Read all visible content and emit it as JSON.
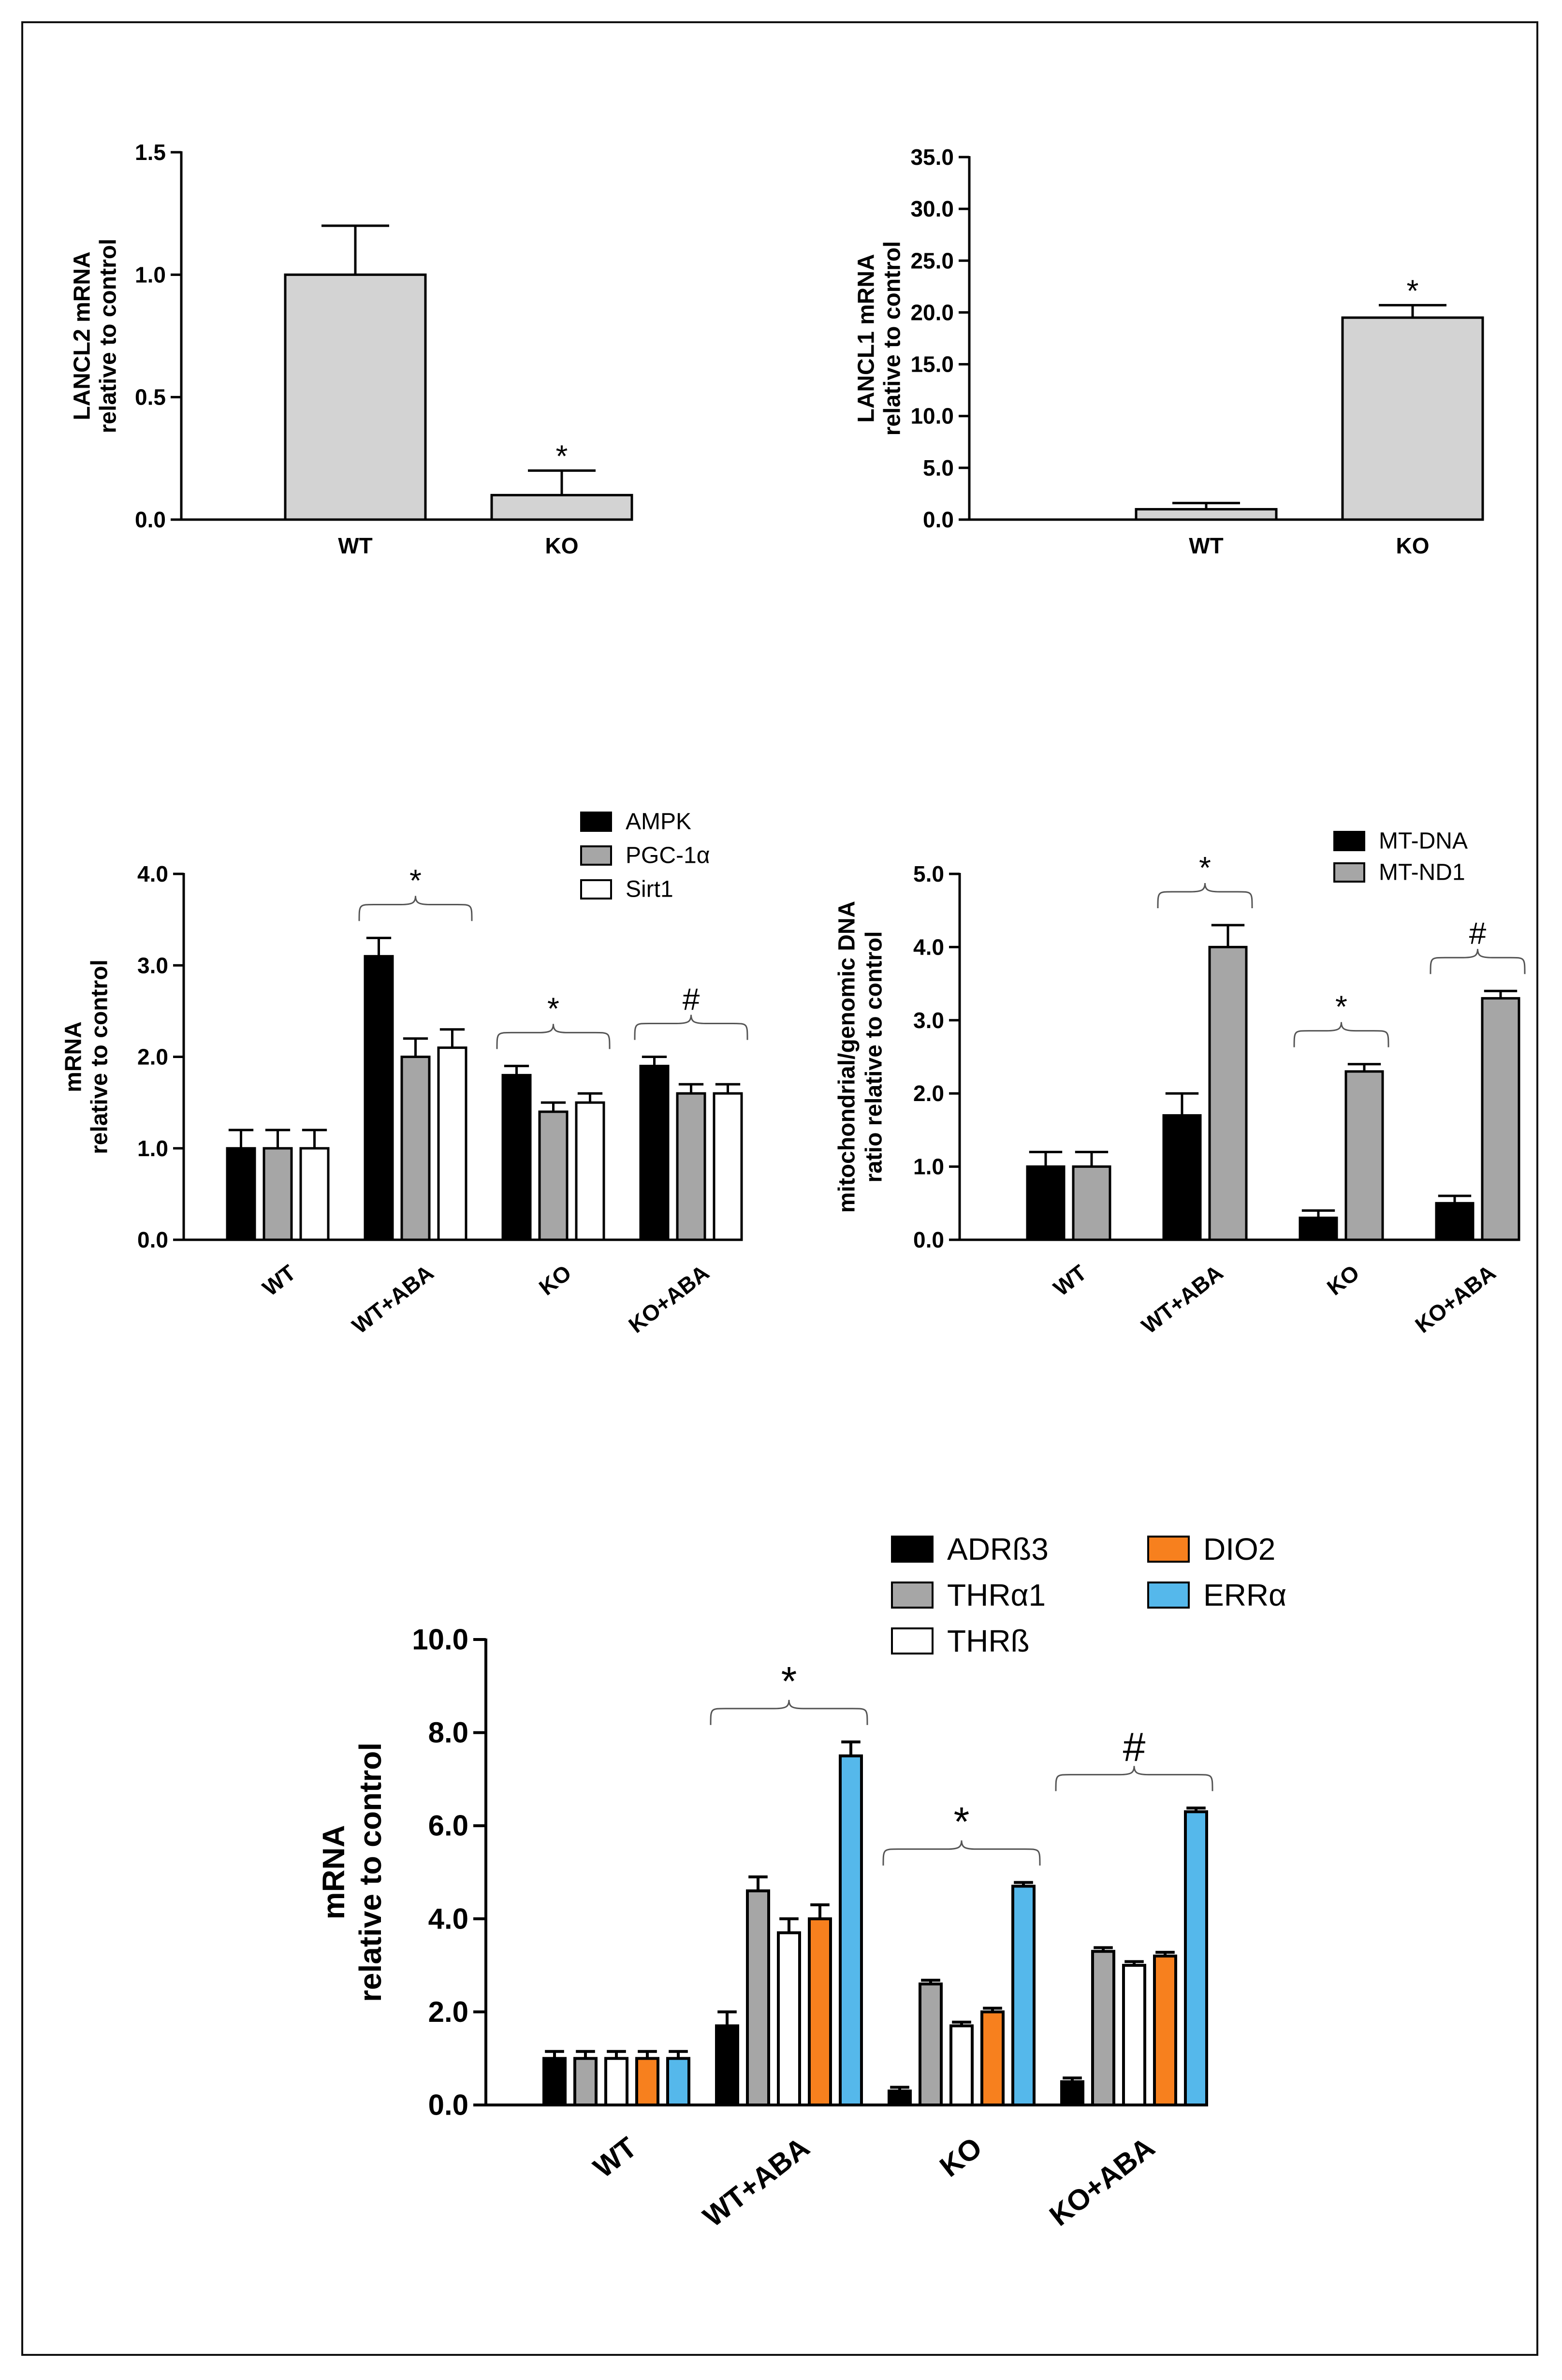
{
  "chart_data": [
    {
      "id": "lancl2",
      "type": "bar",
      "ylabel": [
        "LANCL2 mRNA",
        "relative to control"
      ],
      "categories": [
        "WT",
        "KO"
      ],
      "series": [
        {
          "name": "LANCL2 mRNA",
          "values": [
            1.0,
            0.1
          ],
          "errors": [
            0.2,
            0.1
          ],
          "color": "#d3d3d3"
        }
      ],
      "ylim": [
        0,
        1.5
      ],
      "yticks": [
        0,
        0.5,
        1.0,
        1.5
      ],
      "ytick_labels": [
        "0.0",
        "0.5",
        "1.0",
        "1.5"
      ],
      "annotations": [
        {
          "category": 1,
          "text": "*"
        }
      ]
    },
    {
      "id": "lancl1",
      "type": "bar",
      "ylabel": [
        "LANCL1 mRNA",
        "relative to control"
      ],
      "categories": [
        "WT",
        "KO"
      ],
      "series": [
        {
          "name": "LANCL1 mRNA",
          "values": [
            1.0,
            19.5
          ],
          "errors": [
            0.6,
            1.2
          ],
          "color": "#d3d3d3"
        }
      ],
      "ylim": [
        0,
        35
      ],
      "yticks": [
        0,
        5,
        10,
        15,
        20,
        25,
        30,
        35
      ],
      "ytick_labels": [
        "0.0",
        "5.0",
        "10.0",
        "15.0",
        "20.0",
        "25.0",
        "30.0",
        "35.0"
      ],
      "annotations": [
        {
          "category": 1,
          "text": "*"
        }
      ]
    },
    {
      "id": "ampk",
      "type": "bar",
      "ylabel": [
        "mRNA",
        "relative to control"
      ],
      "categories": [
        "WT",
        "WT+ABA",
        "KO",
        "KO+ABA"
      ],
      "series": [
        {
          "name": "AMPK",
          "values": [
            1.0,
            3.1,
            1.8,
            1.9
          ],
          "errors": [
            0.2,
            0.2,
            0.1,
            0.1
          ],
          "color": "#000000"
        },
        {
          "name": "PGC-1α",
          "values": [
            1.0,
            2.0,
            1.4,
            1.6
          ],
          "errors": [
            0.2,
            0.2,
            0.1,
            0.1
          ],
          "color": "#a6a6a6"
        },
        {
          "name": "Sirt1",
          "values": [
            1.0,
            2.1,
            1.5,
            1.6
          ],
          "errors": [
            0.2,
            0.2,
            0.1,
            0.1
          ],
          "color": "#ffffff"
        }
      ],
      "ylim": [
        0,
        4
      ],
      "yticks": [
        0,
        1,
        2,
        3,
        4
      ],
      "ytick_labels": [
        "0.0",
        "1.0",
        "2.0",
        "3.0",
        "4.0"
      ],
      "annotations": [
        {
          "category": 1,
          "text": "*"
        },
        {
          "category": 2,
          "text": "*"
        },
        {
          "category": 3,
          "text": "#"
        }
      ]
    },
    {
      "id": "mtdna",
      "type": "bar",
      "ylabel": [
        "mitochondrial/genomic DNA",
        "ratio relative to control"
      ],
      "categories": [
        "WT",
        "WT+ABA",
        "KO",
        "KO+ABA"
      ],
      "series": [
        {
          "name": "MT-DNA",
          "values": [
            1.0,
            1.7,
            0.3,
            0.5
          ],
          "errors": [
            0.2,
            0.3,
            0.1,
            0.1
          ],
          "color": "#000000"
        },
        {
          "name": "MT-ND1",
          "values": [
            1.0,
            4.0,
            2.3,
            3.3
          ],
          "errors": [
            0.2,
            0.3,
            0.1,
            0.1
          ],
          "color": "#a6a6a6"
        }
      ],
      "ylim": [
        0,
        5
      ],
      "yticks": [
        0,
        1,
        2,
        3,
        4,
        5
      ],
      "ytick_labels": [
        "0.0",
        "1.0",
        "2.0",
        "3.0",
        "4.0",
        "5.0"
      ],
      "annotations": [
        {
          "category": 1,
          "text": "*"
        },
        {
          "category": 2,
          "text": "*"
        },
        {
          "category": 3,
          "text": "#"
        }
      ]
    },
    {
      "id": "thermo",
      "type": "bar",
      "ylabel": [
        "mRNA",
        "relative to control"
      ],
      "categories": [
        "WT",
        "WT+ABA",
        "KO",
        "KO+ABA"
      ],
      "series": [
        {
          "name": "ADRß3",
          "values": [
            1.0,
            1.7,
            0.3,
            0.5
          ],
          "errors": [
            0.15,
            0.3,
            0.08,
            0.08
          ],
          "color": "#000000"
        },
        {
          "name": "THRα1",
          "values": [
            1.0,
            4.6,
            2.6,
            3.3
          ],
          "errors": [
            0.15,
            0.3,
            0.08,
            0.08
          ],
          "color": "#a6a6a6"
        },
        {
          "name": "THRß",
          "values": [
            1.0,
            3.7,
            1.7,
            3.0
          ],
          "errors": [
            0.15,
            0.3,
            0.08,
            0.08
          ],
          "color": "#ffffff"
        },
        {
          "name": "DIO2",
          "values": [
            1.0,
            4.0,
            2.0,
            3.2
          ],
          "errors": [
            0.15,
            0.3,
            0.08,
            0.08
          ],
          "color": "#f7801e"
        },
        {
          "name": "ERRα",
          "values": [
            1.0,
            7.5,
            4.7,
            6.3
          ],
          "errors": [
            0.15,
            0.3,
            0.08,
            0.08
          ],
          "color": "#55b8eb"
        }
      ],
      "ylim": [
        0,
        10
      ],
      "yticks": [
        0,
        2,
        4,
        6,
        8,
        10
      ],
      "ytick_labels": [
        "0.0",
        "2.0",
        "4.0",
        "6.0",
        "8.0",
        "10.0"
      ],
      "annotations": [
        {
          "category": 1,
          "text": "*"
        },
        {
          "category": 2,
          "text": "*"
        },
        {
          "category": 3,
          "text": "#"
        }
      ]
    }
  ]
}
